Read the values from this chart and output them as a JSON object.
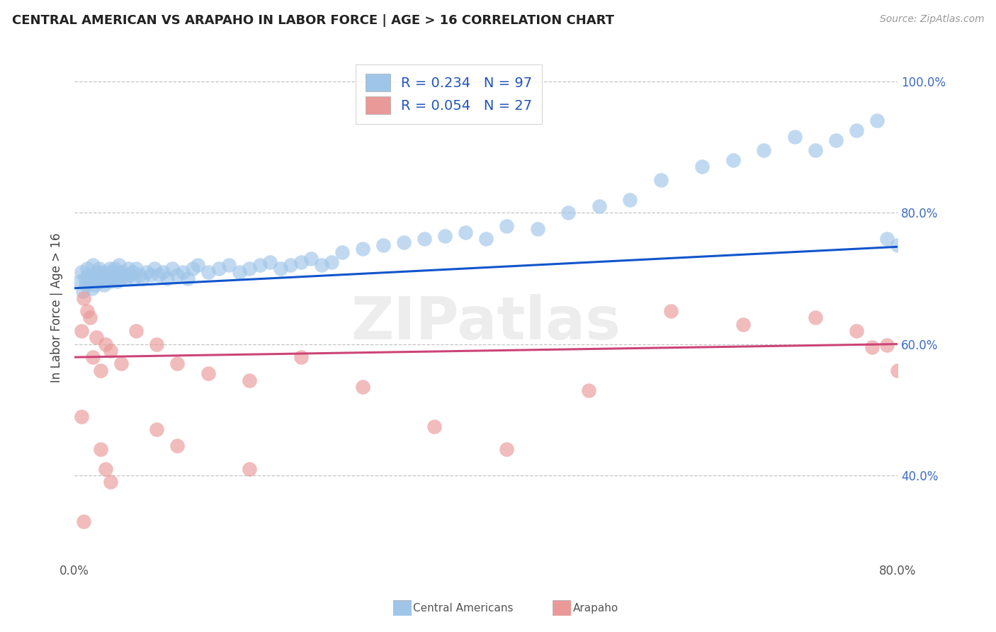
{
  "title": "CENTRAL AMERICAN VS ARAPAHO IN LABOR FORCE | AGE > 16 CORRELATION CHART",
  "source": "Source: ZipAtlas.com",
  "ylabel": "In Labor Force | Age > 16",
  "xlim": [
    0.0,
    0.8
  ],
  "ylim": [
    0.27,
    1.04
  ],
  "blue_R": 0.234,
  "blue_N": 97,
  "pink_R": 0.054,
  "pink_N": 27,
  "blue_color": "#9fc5e8",
  "pink_color": "#ea9999",
  "blue_line_color": "#1155cc",
  "pink_line_color": "#cc4477",
  "legend_label_blue": "Central Americans",
  "legend_label_pink": "Arapaho",
  "background_color": "#ffffff",
  "grid_color": "#bbbbbb",
  "watermark": "ZIPatlas",
  "yticks": [
    0.4,
    0.6,
    0.8,
    1.0
  ],
  "ytick_labels": [
    "40.0%",
    "60.0%",
    "80.0%",
    "100.0%"
  ],
  "blue_trend_x0": 0.0,
  "blue_trend_y0": 0.685,
  "blue_trend_x1": 0.8,
  "blue_trend_y1": 0.748,
  "pink_trend_x0": 0.0,
  "pink_trend_y0": 0.58,
  "pink_trend_x1": 0.8,
  "pink_trend_y1": 0.6,
  "blue_x": [
    0.005,
    0.007,
    0.008,
    0.01,
    0.011,
    0.012,
    0.013,
    0.015,
    0.016,
    0.017,
    0.018,
    0.019,
    0.02,
    0.021,
    0.022,
    0.023,
    0.024,
    0.025,
    0.026,
    0.027,
    0.028,
    0.029,
    0.03,
    0.031,
    0.032,
    0.033,
    0.034,
    0.035,
    0.036,
    0.037,
    0.038,
    0.039,
    0.04,
    0.041,
    0.042,
    0.043,
    0.044,
    0.045,
    0.046,
    0.048,
    0.05,
    0.052,
    0.054,
    0.056,
    0.058,
    0.06,
    0.063,
    0.066,
    0.07,
    0.074,
    0.078,
    0.082,
    0.086,
    0.09,
    0.095,
    0.1,
    0.105,
    0.11,
    0.115,
    0.12,
    0.13,
    0.14,
    0.15,
    0.16,
    0.17,
    0.18,
    0.19,
    0.2,
    0.21,
    0.22,
    0.23,
    0.24,
    0.25,
    0.26,
    0.28,
    0.3,
    0.32,
    0.34,
    0.36,
    0.38,
    0.4,
    0.42,
    0.45,
    0.48,
    0.51,
    0.54,
    0.57,
    0.61,
    0.64,
    0.67,
    0.7,
    0.72,
    0.74,
    0.76,
    0.78,
    0.79,
    0.8
  ],
  "blue_y": [
    0.695,
    0.71,
    0.68,
    0.7,
    0.69,
    0.715,
    0.705,
    0.7,
    0.695,
    0.685,
    0.72,
    0.7,
    0.69,
    0.695,
    0.71,
    0.7,
    0.715,
    0.695,
    0.705,
    0.7,
    0.71,
    0.69,
    0.7,
    0.695,
    0.705,
    0.7,
    0.715,
    0.695,
    0.71,
    0.7,
    0.705,
    0.715,
    0.7,
    0.71,
    0.695,
    0.72,
    0.705,
    0.7,
    0.71,
    0.705,
    0.7,
    0.715,
    0.705,
    0.71,
    0.7,
    0.715,
    0.705,
    0.7,
    0.71,
    0.705,
    0.715,
    0.705,
    0.71,
    0.7,
    0.715,
    0.705,
    0.71,
    0.7,
    0.715,
    0.72,
    0.71,
    0.715,
    0.72,
    0.71,
    0.715,
    0.72,
    0.725,
    0.715,
    0.72,
    0.725,
    0.73,
    0.72,
    0.725,
    0.74,
    0.745,
    0.75,
    0.755,
    0.76,
    0.765,
    0.77,
    0.76,
    0.78,
    0.775,
    0.8,
    0.81,
    0.82,
    0.85,
    0.87,
    0.88,
    0.895,
    0.915,
    0.895,
    0.91,
    0.925,
    0.94,
    0.76,
    0.75
  ],
  "pink_x": [
    0.007,
    0.009,
    0.012,
    0.015,
    0.018,
    0.021,
    0.025,
    0.03,
    0.035,
    0.045,
    0.06,
    0.08,
    0.1,
    0.13,
    0.17,
    0.22,
    0.28,
    0.35,
    0.42,
    0.5,
    0.58,
    0.65,
    0.72,
    0.76,
    0.775,
    0.79,
    0.8
  ],
  "pink_y": [
    0.62,
    0.67,
    0.65,
    0.64,
    0.58,
    0.61,
    0.56,
    0.6,
    0.59,
    0.57,
    0.62,
    0.6,
    0.57,
    0.555,
    0.545,
    0.58,
    0.535,
    0.475,
    0.44,
    0.53,
    0.65,
    0.63,
    0.64,
    0.62,
    0.595,
    0.598,
    0.56
  ],
  "pink_outliers_x": [
    0.007,
    0.009,
    0.025,
    0.03,
    0.035,
    0.08,
    0.1,
    0.17
  ],
  "pink_outliers_y": [
    0.49,
    0.33,
    0.44,
    0.41,
    0.39,
    0.47,
    0.445,
    0.41
  ]
}
